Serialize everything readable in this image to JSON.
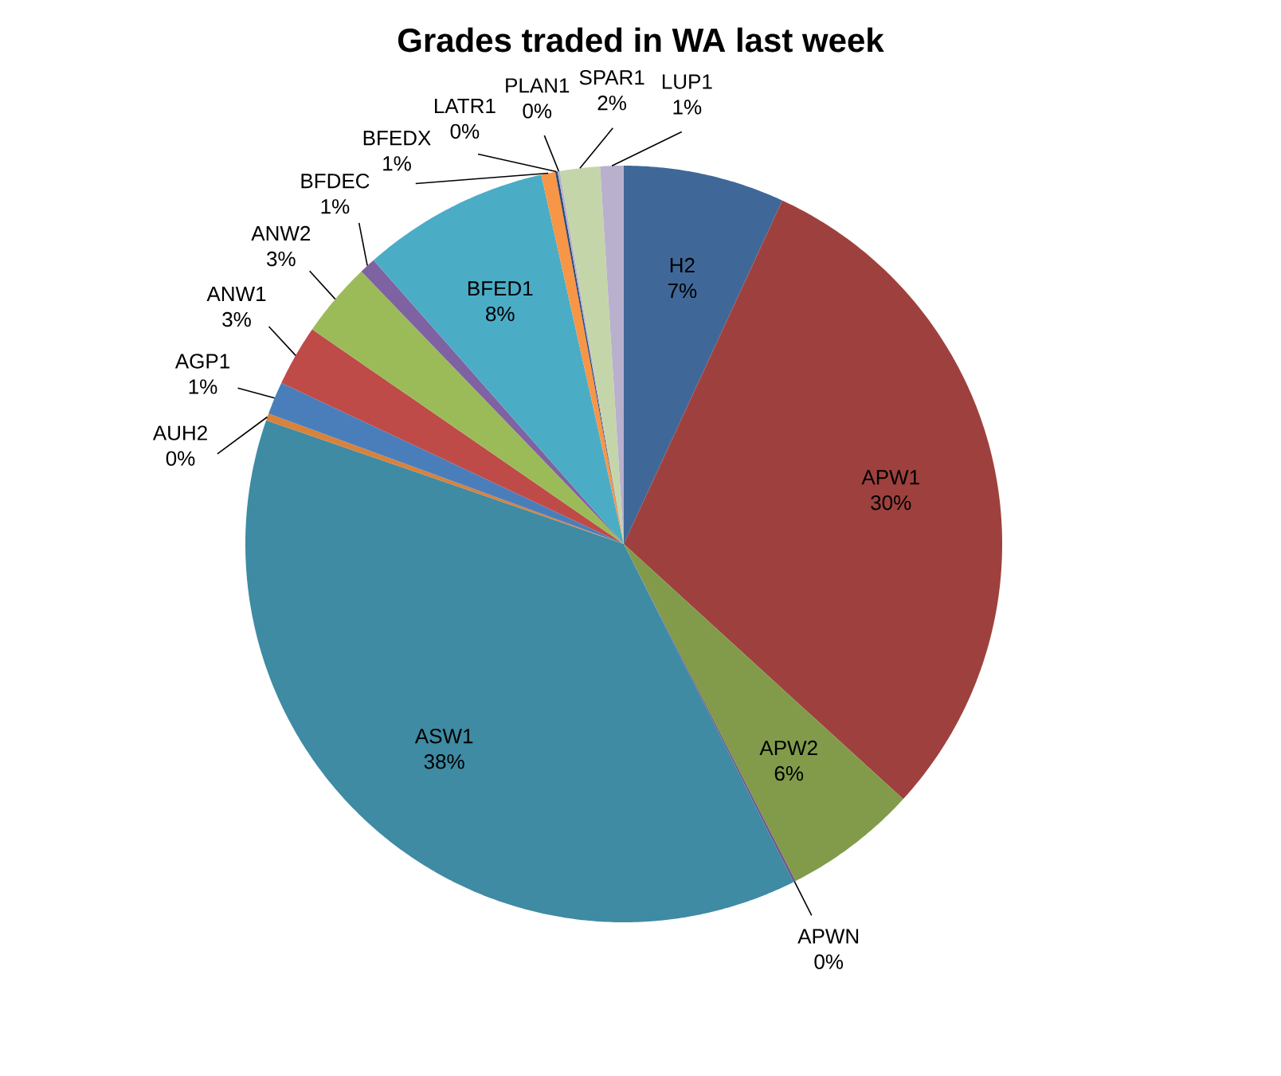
{
  "chart_data": {
    "type": "pie",
    "title": "Grades traded in WA last week",
    "categories": [
      "H2",
      "APW1",
      "APW2",
      "APWN",
      "ASW1",
      "AUH2",
      "AGP1",
      "ANW1",
      "ANW2",
      "BFDEC",
      "BFED1",
      "BFEDX",
      "LATR1",
      "PLAN1",
      "SPAR1",
      "LUP1"
    ],
    "values": [
      6.88,
      29.9,
      5.72,
      0.1,
      37.7,
      0.3,
      1.4,
      2.6,
      3.2,
      0.7,
      8.0,
      0.6,
      0.1,
      0.1,
      1.7,
      1.0
    ],
    "value_labels": [
      "7%",
      "30%",
      "6%",
      "0%",
      "38%",
      "0%",
      "1%",
      "3%",
      "3%",
      "1%",
      "8%",
      "1%",
      "0%",
      "0%",
      "2%",
      "1%"
    ],
    "colors": [
      "#3f6899",
      "#9e413e",
      "#819b4a",
      "#6f5790",
      "#3e8ba3",
      "#d8823b",
      "#4a7ebb",
      "#be4b48",
      "#9bbb59",
      "#7f62a1",
      "#4bacc6",
      "#f79646",
      "#2c4d75",
      "#b8b0cf",
      "#c4d6a9",
      "#b9b0ce"
    ]
  }
}
